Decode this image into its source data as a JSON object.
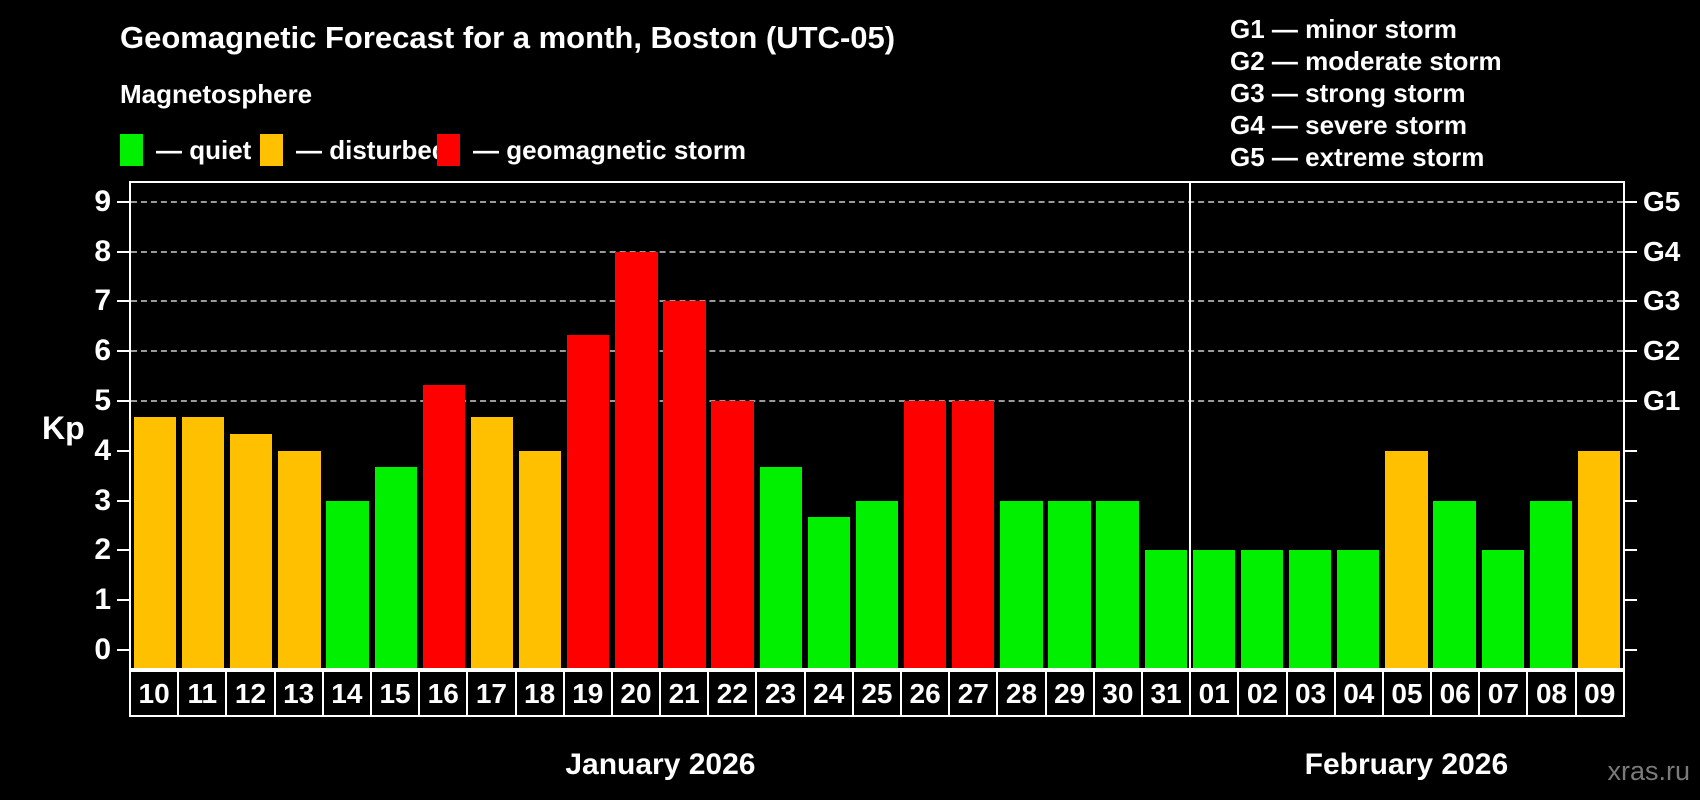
{
  "title": "Geomagnetic Forecast for a month, Boston (UTC-05)",
  "subtitle": "Magnetosphere",
  "watermark": "xras.ru",
  "legend": [
    {
      "label": "— quiet",
      "status": "quiet",
      "color": "#00f000"
    },
    {
      "label": "— disturbed",
      "status": "disturbed",
      "color": "#ffc000"
    },
    {
      "label": "— geomagnetic storm",
      "status": "storm",
      "color": "#ff0000"
    }
  ],
  "g_legend": [
    "G1 — minor storm",
    "G2 — moderate storm",
    "G3 — strong storm",
    "G4 — severe storm",
    "G5 — extreme storm"
  ],
  "chart_data": {
    "type": "bar",
    "title": "Geomagnetic Forecast for a month, Boston (UTC-05)",
    "ylabel": "Kp",
    "ylim": [
      0,
      9
    ],
    "yticks": [
      0,
      1,
      2,
      3,
      4,
      5,
      6,
      7,
      8,
      9
    ],
    "grid_levels": [
      5,
      6,
      7,
      8,
      9
    ],
    "grid_style": "dashed",
    "right_axis_labels": [
      {
        "level": 5,
        "label": "G1"
      },
      {
        "level": 6,
        "label": "G2"
      },
      {
        "level": 7,
        "label": "G3"
      },
      {
        "level": 8,
        "label": "G4"
      },
      {
        "level": 9,
        "label": "G5"
      }
    ],
    "months": [
      {
        "label": "January 2026",
        "days": 22
      },
      {
        "label": "February 2026",
        "days": 9
      }
    ],
    "categories": [
      "10",
      "11",
      "12",
      "13",
      "14",
      "15",
      "16",
      "17",
      "18",
      "19",
      "20",
      "21",
      "22",
      "23",
      "24",
      "25",
      "26",
      "27",
      "28",
      "29",
      "30",
      "31",
      "01",
      "02",
      "03",
      "04",
      "05",
      "06",
      "07",
      "08",
      "09"
    ],
    "series": [
      {
        "name": "Kp forecast",
        "values": [
          4.67,
          4.67,
          4.33,
          4,
          3,
          3.67,
          5.33,
          4.67,
          4,
          6.33,
          8,
          7,
          5,
          3.67,
          2.67,
          3,
          5,
          5,
          3,
          3,
          3,
          2,
          2,
          2,
          2,
          2,
          4,
          3,
          2,
          3,
          4
        ],
        "statuses": [
          "disturbed",
          "disturbed",
          "disturbed",
          "disturbed",
          "quiet",
          "quiet",
          "storm",
          "disturbed",
          "disturbed",
          "storm",
          "storm",
          "storm",
          "storm",
          "quiet",
          "quiet",
          "quiet",
          "storm",
          "storm",
          "quiet",
          "quiet",
          "quiet",
          "quiet",
          "quiet",
          "quiet",
          "quiet",
          "quiet",
          "disturbed",
          "quiet",
          "quiet",
          "quiet",
          "disturbed"
        ]
      }
    ],
    "status_colors": {
      "quiet": "#00f000",
      "disturbed": "#ffc000",
      "storm": "#ff0000"
    }
  }
}
